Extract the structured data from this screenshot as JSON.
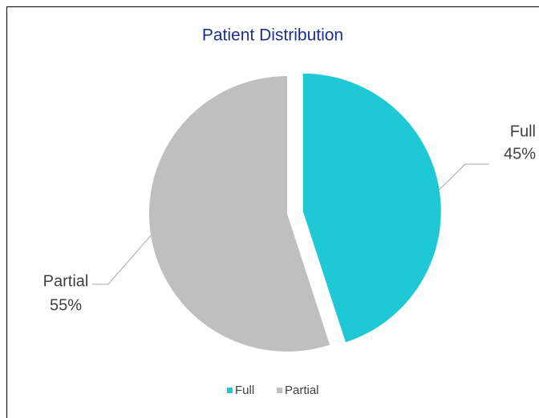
{
  "chart_data": {
    "type": "pie",
    "title": "Patient Distribution",
    "categories": [
      "Full",
      "Partial"
    ],
    "values": [
      45,
      55
    ],
    "value_labels": [
      "45%",
      "55%"
    ],
    "colors": [
      "#1ec8d4",
      "#bfbfbf"
    ],
    "legend": "bottom"
  }
}
